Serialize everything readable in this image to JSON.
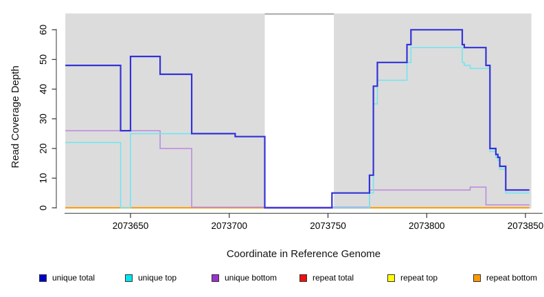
{
  "figure": {
    "x_axis_title": "Coordinate in Reference Genome",
    "y_axis_title": "Read Coverage Depth"
  },
  "legend": {
    "items": [
      {
        "label": "unique total",
        "swatch_color": "#0000cc"
      },
      {
        "label": "unique top",
        "swatch_color": "#00e5ee"
      },
      {
        "label": "unique bottom",
        "swatch_color": "#9933cc"
      },
      {
        "label": "repeat total",
        "swatch_color": "#ee1111"
      },
      {
        "label": "repeat top",
        "swatch_color": "#ffff00"
      },
      {
        "label": "repeat bottom",
        "swatch_color": "#ff9900"
      }
    ]
  },
  "chart_data": {
    "type": "line",
    "subtype": "step-coverage-plot",
    "title": "",
    "xlabel": "Coordinate in Reference Genome",
    "ylabel": "Read Coverage Depth",
    "xlim": [
      2073617,
      2073853
    ],
    "ylim": [
      0,
      65.5
    ],
    "x_ticks": [
      2073650,
      2073700,
      2073750,
      2073800,
      2073850
    ],
    "y_ticks": [
      0,
      10,
      20,
      30,
      40,
      50,
      60
    ],
    "grid": false,
    "legend_position": "bottom",
    "plot_background": "#ffffff",
    "region_fill_color": "#dcdcdc",
    "background_regions": [
      {
        "x_start": 2073617,
        "x_end": 2073718
      },
      {
        "x_start": 2073753,
        "x_end": 2073853
      }
    ],
    "uncovered_gap": {
      "x_start": 2073718,
      "x_end": 2073753,
      "top_line_color": "#a6a6a6"
    },
    "series": [
      {
        "name": "repeat top",
        "line_color": "#ffff33",
        "width": 1.5,
        "end": 2073852,
        "points": [
          [
            2073617,
            0
          ]
        ],
        "note": "flat at 0, hidden beneath repeat bottom"
      },
      {
        "name": "repeat bottom",
        "line_color": "#ff9800",
        "width": 2,
        "end": 2073852,
        "points": [
          [
            2073617,
            0
          ]
        ]
      },
      {
        "name": "repeat total",
        "line_color": "#cc4466",
        "width": 2,
        "end": 2073771,
        "points": [
          [
            2073753,
            0
          ]
        ]
      },
      {
        "name": "unique bottom",
        "line_color": "#bb85de",
        "width": 1.5,
        "end": 2073852,
        "zero_lift": 0.2,
        "points": [
          [
            2073617,
            26
          ],
          [
            2073665,
            20
          ],
          [
            2073681,
            0
          ],
          [
            2073771,
            6
          ],
          [
            2073822,
            7
          ],
          [
            2073830,
            1
          ]
        ]
      },
      {
        "name": "unique top",
        "line_color": "#72e6ee",
        "width": 1.6,
        "end": 2073852,
        "points": [
          [
            2073617,
            22
          ],
          [
            2073645,
            0
          ],
          [
            2073650,
            25
          ],
          [
            2073703,
            24
          ],
          [
            2073718,
            0
          ],
          [
            2073771,
            5
          ],
          [
            2073773,
            35
          ],
          [
            2073775,
            43
          ],
          [
            2073790,
            49
          ],
          [
            2073792,
            54
          ],
          [
            2073818,
            49
          ],
          [
            2073819,
            48
          ],
          [
            2073822,
            47
          ],
          [
            2073832,
            19
          ],
          [
            2073835,
            17
          ],
          [
            2073836,
            16
          ],
          [
            2073837,
            13
          ],
          [
            2073840,
            5
          ]
        ]
      },
      {
        "name": "unique total",
        "line_color": "#3232d8",
        "width": 2.2,
        "end": 2073852,
        "points": [
          [
            2073617,
            48
          ],
          [
            2073645,
            26
          ],
          [
            2073650,
            51
          ],
          [
            2073665,
            45
          ],
          [
            2073681,
            25
          ],
          [
            2073703,
            24
          ],
          [
            2073718,
            0
          ],
          [
            2073752,
            5
          ],
          [
            2073771,
            11
          ],
          [
            2073773,
            41
          ],
          [
            2073775,
            49
          ],
          [
            2073790,
            55
          ],
          [
            2073792,
            60
          ],
          [
            2073818,
            55
          ],
          [
            2073819,
            54
          ],
          [
            2073830,
            48
          ],
          [
            2073832,
            20
          ],
          [
            2073835,
            18
          ],
          [
            2073836,
            17
          ],
          [
            2073837,
            14
          ],
          [
            2073840,
            6
          ]
        ]
      }
    ]
  }
}
